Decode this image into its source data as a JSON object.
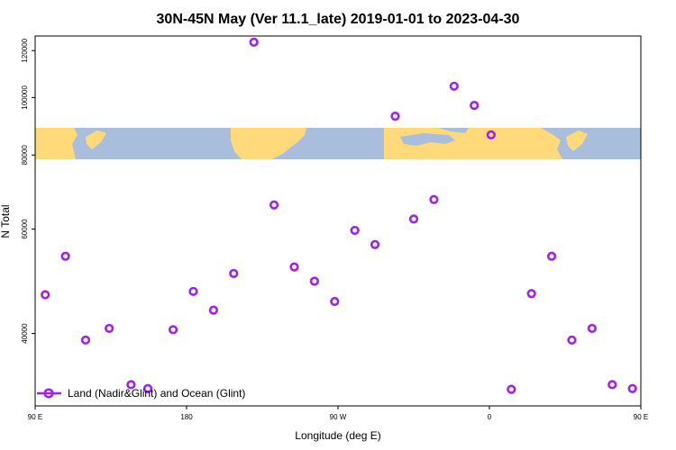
{
  "chart_data": {
    "type": "scatter",
    "title": "30N-45N May (Ver 11.1_late)   2019-01-01 to 2023-04-30",
    "xlabel": "Longitude (deg E)",
    "ylabel": "N Total",
    "xlim": [
      90,
      450
    ],
    "ylim": [
      30200,
      127000
    ],
    "y_scale": "log",
    "x_ticks": [
      {
        "value": 90,
        "label": "90 E"
      },
      {
        "value": 180,
        "label": "180"
      },
      {
        "value": 270,
        "label": "90 W"
      },
      {
        "value": 360,
        "label": "0"
      },
      {
        "value": 450,
        "label": "90 E"
      },
      {
        "value": 540,
        "label": "180"
      }
    ],
    "y_ticks": [
      {
        "value": 40000,
        "label": "40000"
      },
      {
        "value": 60000,
        "label": "60000"
      },
      {
        "value": 80000,
        "label": "80000"
      },
      {
        "value": 100000,
        "label": "100000"
      },
      {
        "value": 120000,
        "label": "120000"
      }
    ],
    "grid": false,
    "legend_position": "bottom-left",
    "inset": "world map strip (30N-45N)",
    "series": [
      {
        "name": "Land (Nadir&Glint) and Ocean (Glint)",
        "color": "#a020f0",
        "marker": "open-circle",
        "x": [
          96,
          108,
          120,
          134,
          147,
          157,
          172,
          184,
          196,
          208,
          220,
          232,
          244,
          256,
          268,
          280,
          292,
          304,
          315,
          327,
          339,
          351,
          361,
          373,
          385,
          397,
          409,
          421,
          433,
          445
        ],
        "y": [
          46500,
          54000,
          39000,
          40800,
          32800,
          32300,
          40600,
          47100,
          43800,
          50500,
          124000,
          65900,
          51800,
          49000,
          45300,
          59700,
          56500,
          93000,
          62400,
          67300,
          104500,
          97000,
          86500,
          32200,
          46700,
          54000,
          39000,
          40800,
          32800,
          32300
        ]
      }
    ]
  }
}
